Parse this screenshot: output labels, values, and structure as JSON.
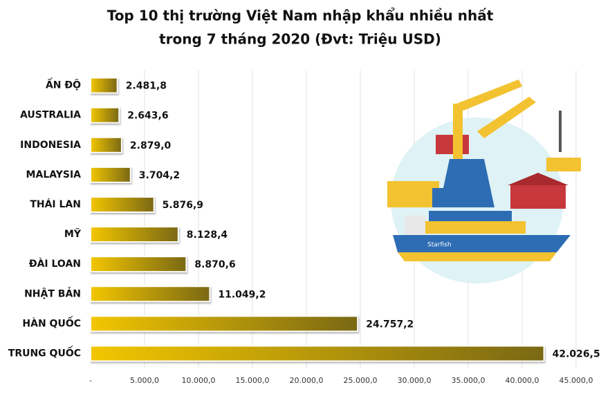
{
  "chart_data": {
    "type": "barh",
    "title": [
      "Top 10 thị trường Việt Nam nhập khẩu nhiều nhất",
      "trong 7 tháng 2020 (Đvt: Triệu USD)"
    ],
    "categories": [
      "ẤN ĐỘ",
      "AUSTRALIA",
      "INDONESIA",
      "MALAYSIA",
      "THÁI LAN",
      "MỸ",
      "ĐÀI LOAN",
      "NHẬT BẢN",
      "HÀN QUỐC",
      "TRUNG QUỐC"
    ],
    "values": [
      2481.8,
      2643.6,
      2879.0,
      3704.2,
      5876.9,
      8128.4,
      8870.6,
      11049.2,
      24757.2,
      42026.5
    ],
    "value_labels": [
      "2.481,8",
      "2.643,6",
      "2.879,0",
      "3.704,2",
      "5.876,9",
      "8.128,4",
      "8.870,6",
      "11.049,2",
      "24.757,2",
      "42.026,5"
    ],
    "colors": [
      "#f2c600",
      "#7a6814"
    ],
    "xlim": [
      0,
      45000
    ],
    "xticks": [
      {
        "value": 0,
        "label": "-"
      },
      {
        "value": 5000,
        "label": "5.000,0"
      },
      {
        "value": 10000,
        "label": "10.000,0"
      },
      {
        "value": 15000,
        "label": "15.000,0"
      },
      {
        "value": 20000,
        "label": "20.000,0"
      },
      {
        "value": 25000,
        "label": "25.000,0"
      },
      {
        "value": 30000,
        "label": "30.000,0"
      },
      {
        "value": 35000,
        "label": "35.000,0"
      },
      {
        "value": 40000,
        "label": "40.000,0"
      },
      {
        "value": 45000,
        "label": "45.000,0"
      }
    ],
    "grid": true
  }
}
